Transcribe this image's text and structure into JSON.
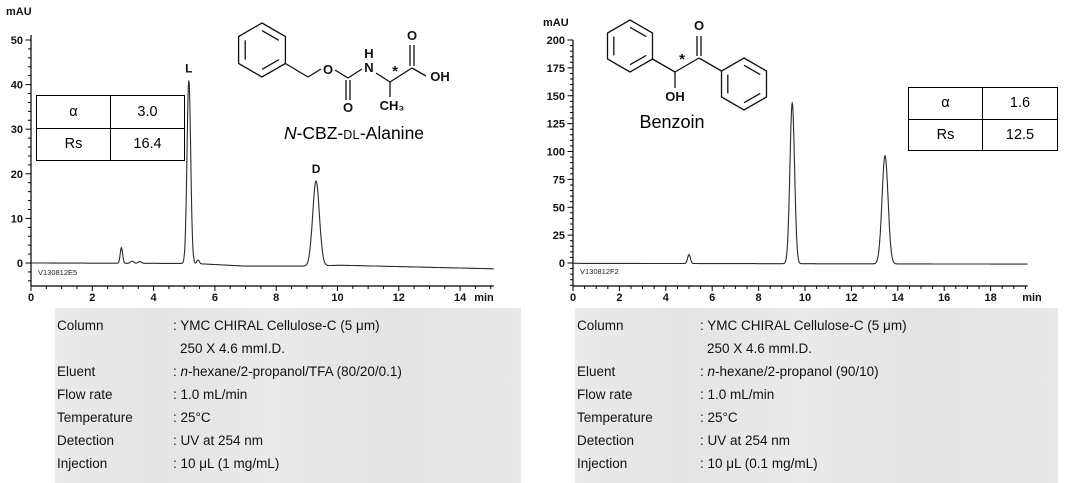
{
  "chart_data": [
    {
      "type": "line",
      "title_text": "N-CBZ-DL-Alanine",
      "title_parts": {
        "italic": "N",
        "mid": "-CBZ-",
        "smallcaps": "DL",
        "rest": "-Alanine"
      },
      "y_unit": "mAU",
      "x_unit": "min",
      "trace_id": "V130812E5",
      "xlim": [
        0,
        15
      ],
      "ylim": [
        0,
        50
      ],
      "x_ticks": [
        0,
        2,
        4,
        6,
        8,
        10,
        12,
        14
      ],
      "x_major_step": 2,
      "x_minor_step": 0.5,
      "x_max": 15.1,
      "y_ticks": [
        0,
        10,
        20,
        30,
        40,
        50
      ],
      "y_major_step": 10,
      "y_minor_step": 2,
      "y_minor_min": -4,
      "peaks": [
        {
          "t": 2.95,
          "height": 3.5,
          "sigma": 0.04,
          "label": ""
        },
        {
          "t": 3.3,
          "height": 0.5,
          "sigma": 0.05,
          "label": ""
        },
        {
          "t": 3.55,
          "height": 0.4,
          "sigma": 0.05,
          "label": ""
        },
        {
          "t": 5.15,
          "height": 41,
          "sigma": 0.06,
          "label": "L"
        },
        {
          "t": 5.45,
          "height": 0.8,
          "sigma": 0.04,
          "label": ""
        },
        {
          "t": 9.3,
          "height": 19,
          "sigma": 0.11,
          "label": "D"
        }
      ],
      "baseline_points": [
        [
          0,
          0
        ],
        [
          5.3,
          -0.1
        ],
        [
          7.0,
          -0.7
        ],
        [
          9.0,
          -0.7
        ],
        [
          10.1,
          -0.5
        ],
        [
          15.1,
          -1.3
        ]
      ],
      "results": {
        "alpha_label": "α",
        "alpha_value": "3.0",
        "rs_label": "Rs",
        "rs_value": "16.4"
      },
      "molecule": {
        "name": "N-CBZ-DL-Alanine",
        "atoms": {
          "o_ester": "O",
          "o_carbonyl": "O",
          "h": "H",
          "n": "N",
          "chiral": "*",
          "ch3": "CH₃",
          "o_top": "O",
          "oh": "OH"
        }
      },
      "conditions": [
        {
          "label": "Column",
          "value": ": YMC CHIRAL Cellulose-C (5 μm)",
          "value2": "250 X 4.6 mmI.D."
        },
        {
          "label": "Eluent",
          "value_pre": ": ",
          "value_italic": "n",
          "value_post": "-hexane/2-propanol/TFA (80/20/0.1)"
        },
        {
          "label": "Flow rate",
          "value": ": 1.0 mL/min"
        },
        {
          "label": "Temperature",
          "value": ": 25°C"
        },
        {
          "label": "Detection",
          "value": ": UV at 254 nm"
        },
        {
          "label": "Injection",
          "value": ": 10 μL (1 mg/mL)"
        }
      ]
    },
    {
      "type": "line",
      "title_text": "Benzoin",
      "y_unit": "mAU",
      "x_unit": "min",
      "trace_id": "V130812F2",
      "xlim": [
        0,
        19.5
      ],
      "ylim": [
        0,
        200
      ],
      "x_ticks": [
        0,
        2,
        4,
        6,
        8,
        10,
        12,
        14,
        16,
        18
      ],
      "x_major_step": 2,
      "x_minor_step": 0.5,
      "x_max": 19.6,
      "y_ticks": [
        0,
        25,
        50,
        75,
        100,
        125,
        150,
        175,
        200
      ],
      "y_major_step": 25,
      "y_minor_step": 5,
      "y_minor_min": -20,
      "peaks": [
        {
          "t": 5.0,
          "height": 8,
          "sigma": 0.06,
          "label": ""
        },
        {
          "t": 9.45,
          "height": 144,
          "sigma": 0.1,
          "label": ""
        },
        {
          "t": 13.45,
          "height": 97,
          "sigma": 0.13,
          "label": ""
        }
      ],
      "baseline_points": [
        [
          0,
          -0.3
        ],
        [
          19.6,
          -1.0
        ]
      ],
      "results": {
        "alpha_label": "α",
        "alpha_value": "1.6",
        "rs_label": "Rs",
        "rs_value": "12.5"
      },
      "molecule": {
        "name": "Benzoin",
        "atoms": {
          "chiral": "*",
          "oh": "OH",
          "o": "O"
        }
      },
      "conditions": [
        {
          "label": "Column",
          "value": ": YMC CHIRAL Cellulose-C (5 μm)",
          "value2": "250 X 4.6 mmI.D."
        },
        {
          "label": "Eluent",
          "value_pre": ": ",
          "value_italic": "n",
          "value_post": "-hexane/2-propanol (90/10)"
        },
        {
          "label": "Flow rate",
          "value": ": 1.0 mL/min"
        },
        {
          "label": "Temperature",
          "value": ": 25°C"
        },
        {
          "label": "Detection",
          "value": ": UV at 254 nm"
        },
        {
          "label": "Injection",
          "value": ": 10 μL (0.1 mg/mL)"
        }
      ]
    }
  ]
}
